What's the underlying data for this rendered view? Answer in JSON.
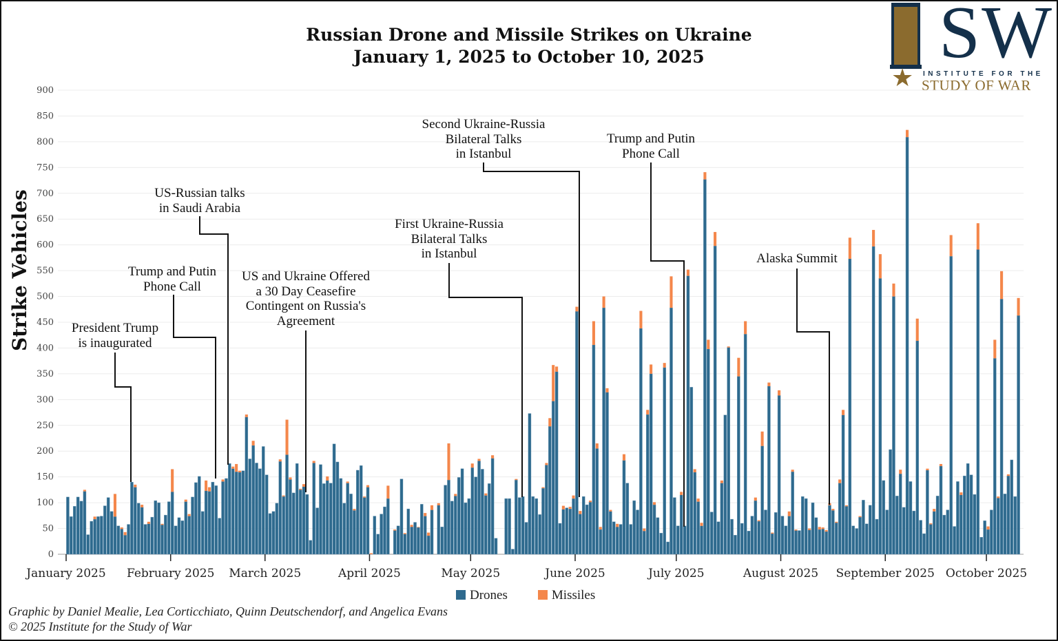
{
  "chart_data": {
    "type": "bar",
    "stacked": true,
    "title": "Russian Drone and Missile Strikes on Ukraine",
    "subtitle": "January 1, 2025 to October 10, 2025",
    "ylabel": "Strike Vehicles",
    "xlabel": "",
    "ylim": [
      0,
      900
    ],
    "yticks": [
      0,
      50,
      100,
      150,
      200,
      250,
      300,
      350,
      400,
      450,
      500,
      550,
      600,
      650,
      700,
      750,
      800,
      850,
      900
    ],
    "grid": true,
    "legend_position": "bottom-center",
    "x_start": "2025-01-01",
    "x_end": "2025-10-10",
    "month_ticks": [
      {
        "label": "January 2025",
        "day": 0
      },
      {
        "label": "February 2025",
        "day": 31
      },
      {
        "label": "March 2025",
        "day": 59
      },
      {
        "label": "April 2025",
        "day": 90
      },
      {
        "label": "May 2025",
        "day": 120
      },
      {
        "label": "June 2025",
        "day": 151
      },
      {
        "label": "July 2025",
        "day": 181
      },
      {
        "label": "August 2025",
        "day": 212
      },
      {
        "label": "September 2025",
        "day": 243
      },
      {
        "label": "October 2025",
        "day": 273
      }
    ],
    "series": [
      {
        "name": "Drones",
        "color": "#2e6a8e",
        "values": [
          111,
          73,
          93,
          111,
          103,
          122,
          38,
          64,
          68,
          73,
          74,
          94,
          110,
          83,
          73,
          55,
          49,
          37,
          58,
          140,
          130,
          99,
          91,
          58,
          59,
          72,
          104,
          100,
          57,
          76,
          102,
          121,
          55,
          71,
          65,
          102,
          74,
          111,
          139,
          151,
          83,
          123,
          122,
          140,
          133,
          70,
          141,
          147,
          176,
          166,
          160,
          159,
          162,
          266,
          185,
          211,
          177,
          166,
          209,
          154,
          79,
          83,
          99,
          180,
          112,
          193,
          145,
          119,
          176,
          125,
          131,
          116,
          27,
          177,
          90,
          174,
          137,
          143,
          138,
          214,
          179,
          147,
          99,
          138,
          117,
          85,
          163,
          172,
          110,
          130,
          0,
          74,
          39,
          78,
          92,
          108,
          0,
          46,
          55,
          146,
          39,
          88,
          53,
          62,
          52,
          97,
          74,
          36,
          86,
          0,
          95,
          53,
          134,
          144,
          103,
          113,
          149,
          166,
          100,
          108,
          168,
          150,
          181,
          165,
          114,
          137,
          186,
          31,
          0,
          0,
          108,
          108,
          10,
          144,
          110,
          112,
          62,
          273,
          112,
          108,
          77,
          128,
          173,
          248,
          297,
          354,
          60,
          87,
          90,
          88,
          108,
          471,
          78,
          112,
          96,
          101,
          406,
          205,
          48,
          478,
          314,
          83,
          63,
          53,
          58,
          182,
          138,
          58,
          104,
          86,
          438,
          45,
          271,
          350,
          96,
          71,
          41,
          362,
          24,
          478,
          110,
          55,
          115,
          55,
          540,
          324,
          159,
          102,
          55,
          727,
          398,
          82,
          598,
          63,
          138,
          270,
          401,
          68,
          37,
          345,
          60,
          427,
          45,
          74,
          104,
          64,
          210,
          86,
          326,
          40,
          81,
          308,
          74,
          55,
          74,
          160,
          46,
          46,
          112,
          108,
          47,
          100,
          71,
          48,
          49,
          44,
          95,
          85,
          61,
          138,
          270,
          93,
          573,
          55,
          50,
          72,
          105,
          59,
          95,
          597,
          68,
          535,
          143,
          86,
          203,
          500,
          113,
          156,
          91,
          809,
          141,
          84,
          414,
          66,
          40,
          163,
          58,
          83,
          113,
          171,
          76,
          86,
          578,
          54,
          141,
          115,
          152,
          176,
          154,
          116,
          591,
          33,
          65,
          48,
          86,
          380,
          109,
          495,
          117,
          152,
          183,
          112,
          463
        ]
      },
      {
        "name": "Missiles",
        "color": "#f4874b",
        "values": [
          0,
          0,
          0,
          0,
          0,
          3,
          0,
          0,
          5,
          0,
          0,
          0,
          0,
          0,
          44,
          0,
          3,
          6,
          0,
          0,
          5,
          0,
          5,
          0,
          4,
          0,
          0,
          0,
          2,
          0,
          0,
          44,
          0,
          0,
          0,
          4,
          4,
          0,
          0,
          0,
          0,
          20,
          8,
          0,
          0,
          0,
          4,
          0,
          0,
          4,
          15,
          3,
          0,
          5,
          0,
          9,
          0,
          0,
          0,
          0,
          0,
          0,
          0,
          4,
          2,
          68,
          4,
          0,
          0,
          2,
          5,
          0,
          0,
          4,
          0,
          0,
          0,
          8,
          0,
          0,
          0,
          0,
          0,
          3,
          0,
          3,
          0,
          0,
          2,
          4,
          2,
          0,
          0,
          0,
          0,
          25,
          0,
          2,
          0,
          0,
          2,
          0,
          4,
          0,
          1,
          0,
          6,
          6,
          9,
          0,
          4,
          0,
          0,
          71,
          0,
          4,
          0,
          0,
          0,
          0,
          8,
          0,
          4,
          0,
          4,
          0,
          6,
          0,
          0,
          0,
          0,
          0,
          0,
          2,
          0,
          0,
          0,
          0,
          0,
          0,
          0,
          2,
          4,
          16,
          70,
          10,
          0,
          7,
          0,
          4,
          6,
          9,
          6,
          0,
          0,
          3,
          46,
          10,
          5,
          22,
          8,
          3,
          0,
          6,
          0,
          12,
          0,
          0,
          0,
          0,
          34,
          5,
          9,
          18,
          5,
          0,
          0,
          9,
          0,
          61,
          0,
          0,
          6,
          0,
          12,
          0,
          6,
          6,
          6,
          14,
          18,
          0,
          27,
          0,
          5,
          0,
          2,
          0,
          0,
          36,
          0,
          25,
          0,
          0,
          6,
          2,
          28,
          0,
          7,
          2,
          0,
          10,
          0,
          0,
          9,
          4,
          2,
          0,
          0,
          0,
          3,
          0,
          0,
          5,
          3,
          3,
          4,
          3,
          2,
          7,
          10,
          2,
          41,
          0,
          0,
          2,
          0,
          0,
          0,
          32,
          0,
          47,
          0,
          0,
          0,
          25,
          0,
          8,
          0,
          14,
          0,
          0,
          43,
          0,
          0,
          3,
          2,
          5,
          0,
          4,
          0,
          0,
          41,
          0,
          0,
          5,
          0,
          0,
          0,
          0,
          51,
          0,
          0,
          6,
          0,
          36,
          3,
          54,
          0,
          3,
          0,
          0,
          34
        ]
      }
    ],
    "annotations": [
      {
        "text": [
          "President Trump",
          "is inaugurated"
        ],
        "day": 19
      },
      {
        "text": [
          "Trump and Putin",
          "Phone Call"
        ],
        "day": 44
      },
      {
        "text": [
          "US-Russian talks",
          "in Saudi Arabia"
        ],
        "day": 48
      },
      {
        "text": [
          "US and Ukraine Offered",
          "a 30 Day Ceasefire",
          "Contingent on Russia's",
          "Agreement"
        ],
        "day": 70
      },
      {
        "text": [
          "First Ukraine-Russia",
          "Bilateral Talks",
          "in Istanbul"
        ],
        "day": 135
      },
      {
        "text": [
          "Second Ukraine-Russia",
          "Bilateral Talks",
          "in Istanbul"
        ],
        "day": 152
      },
      {
        "text": [
          "Trump and Putin",
          "Phone Call"
        ],
        "day": 183
      },
      {
        "text": [
          "Alaska Summit"
        ],
        "day": 226
      }
    ]
  },
  "legend": {
    "drones": "Drones",
    "missiles": "Missiles"
  },
  "credits": {
    "line1": "Graphic by Daniel Mealie, Lea Corticchiato, Quinn Deutschendorf, and Angelica Evans",
    "line2": "© 2025 Institute for the Study of War"
  },
  "logo": {
    "mark": "ISW",
    "line1": "INSTITUTE FOR THE",
    "line2": "STUDY OF WAR"
  }
}
